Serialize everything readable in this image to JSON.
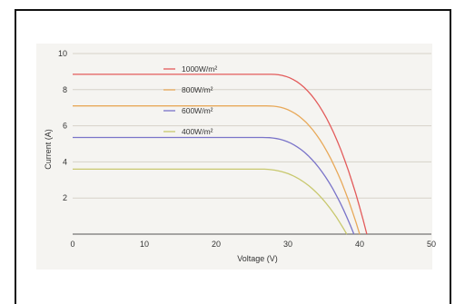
{
  "chart_data": {
    "type": "line",
    "title": "",
    "xlabel": "Voltage (V)",
    "ylabel": "Current (A)",
    "xlim": [
      0,
      50
    ],
    "ylim": [
      0,
      10
    ],
    "xticks": [
      0,
      10,
      20,
      30,
      40,
      50
    ],
    "yticks": [
      2,
      4,
      6,
      8,
      10
    ],
    "grid": "horizontal",
    "legend_position": "inside-top-left",
    "series": [
      {
        "name": "1000W/m²",
        "color": "#e35b5b",
        "isc": 8.85,
        "voc": 41.0,
        "knee_start": 27.5
      },
      {
        "name": "800W/m²",
        "color": "#e8a95a",
        "isc": 7.1,
        "voc": 40.0,
        "knee_start": 27.0
      },
      {
        "name": "600W/m²",
        "color": "#7a74c9",
        "isc": 5.35,
        "voc": 39.2,
        "knee_start": 26.5
      },
      {
        "name": "400W/m²",
        "color": "#c8c86e",
        "isc": 3.6,
        "voc": 38.2,
        "knee_start": 26.0
      }
    ]
  }
}
